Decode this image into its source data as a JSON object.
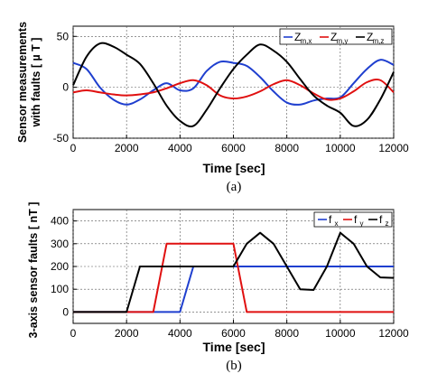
{
  "chart_data": [
    {
      "type": "line",
      "panel": "a",
      "caption": "(a)",
      "xlabel": "Time  [sec]",
      "ylabel": [
        "Sensor measurements",
        "with faults [ µ T ]"
      ],
      "xlim": [
        0,
        12000
      ],
      "ylim": [
        -50,
        60
      ],
      "xticks": [
        0,
        2000,
        4000,
        6000,
        8000,
        10000,
        12000
      ],
      "yticks": [
        -50,
        0,
        50
      ],
      "grid": "dashed",
      "legend_position": "top-right",
      "series": [
        {
          "name": "Z",
          "sub": "m,x",
          "color": "#1f3fcf",
          "x": [
            0,
            500,
            1000,
            1500,
            2000,
            2500,
            3000,
            3500,
            4000,
            4500,
            5000,
            5500,
            6000,
            6500,
            7000,
            7500,
            8000,
            8500,
            9000,
            9500,
            10000,
            10500,
            11000,
            11500,
            12000
          ],
          "y": [
            24,
            18,
            0,
            -12,
            -17,
            -12,
            -3,
            4,
            -3,
            -1,
            16,
            25,
            24,
            21,
            10,
            -4,
            -15,
            -17,
            -13,
            -11,
            -10,
            4,
            18,
            27,
            22
          ]
        },
        {
          "name": "Z",
          "sub": "m,y",
          "color": "#e01010",
          "x": [
            0,
            500,
            1000,
            1500,
            2000,
            2500,
            3000,
            3500,
            4000,
            4500,
            5000,
            5500,
            6000,
            6500,
            7000,
            7500,
            8000,
            8500,
            9000,
            9500,
            10000,
            10500,
            11000,
            11500,
            12000
          ],
          "y": [
            -5,
            -3,
            -5,
            -7,
            -8,
            -7,
            -5,
            -1,
            4,
            7,
            2,
            -8,
            -11,
            -9,
            -4,
            3,
            7,
            2,
            -6,
            -12,
            -11,
            -4,
            5,
            7,
            -5
          ]
        },
        {
          "name": "Z",
          "sub": "m,z",
          "color": "#000000",
          "x": [
            0,
            500,
            1000,
            1500,
            2000,
            2500,
            3000,
            3500,
            4000,
            4500,
            5000,
            5500,
            6000,
            6500,
            7000,
            7500,
            8000,
            8500,
            9000,
            9500,
            10000,
            10500,
            11000,
            11500,
            12000
          ],
          "y": [
            2,
            30,
            43,
            40,
            32,
            23,
            4,
            -18,
            -33,
            -38,
            -22,
            -1,
            18,
            32,
            42,
            36,
            25,
            8,
            -8,
            -18,
            -25,
            -38,
            -32,
            -12,
            15
          ]
        }
      ]
    },
    {
      "type": "line",
      "panel": "b",
      "caption": "(b)",
      "xlabel": "Time  [sec]",
      "ylabel": [
        "3-axis sensor faults [ nT ]"
      ],
      "xlim": [
        0,
        12000
      ],
      "ylim": [
        -50,
        450
      ],
      "xticks": [
        0,
        2000,
        4000,
        6000,
        8000,
        10000,
        12000
      ],
      "yticks": [
        0,
        100,
        200,
        300,
        400
      ],
      "grid": "dashed",
      "legend_position": "top-right",
      "series": [
        {
          "name": "f",
          "sub": "x",
          "color": "#1f3fcf",
          "x": [
            0,
            4000,
            4500,
            12000
          ],
          "y": [
            0,
            0,
            200,
            200
          ]
        },
        {
          "name": "f",
          "sub": "y",
          "color": "#e01010",
          "x": [
            0,
            3000,
            3500,
            6000,
            6500,
            12000
          ],
          "y": [
            0,
            0,
            300,
            300,
            0,
            0
          ]
        },
        {
          "name": "f",
          "sub": "z",
          "color": "#000000",
          "x": [
            0,
            2000,
            2500,
            6000,
            6500,
            7000,
            7500,
            8000,
            8500,
            9000,
            9500,
            10000,
            10500,
            11000,
            11500,
            12000
          ],
          "y": [
            0,
            0,
            200,
            200,
            300,
            348,
            300,
            200,
            100,
            97,
            200,
            348,
            300,
            200,
            152,
            150
          ]
        }
      ]
    }
  ]
}
